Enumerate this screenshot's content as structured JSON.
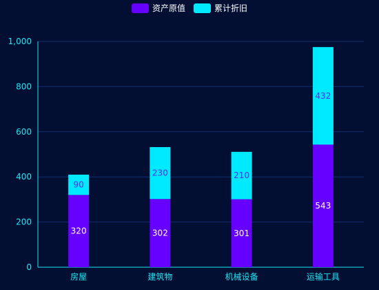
{
  "chart_data": {
    "type": "bar",
    "stacked": true,
    "categories": [
      "房屋",
      "建筑物",
      "机械设备",
      "运输工具"
    ],
    "series": [
      {
        "name": "资产原值",
        "values": [
          320,
          302,
          301,
          543
        ],
        "color": "#6600ff",
        "label_color": "#ffffff"
      },
      {
        "name": "累计折旧",
        "values": [
          90,
          230,
          210,
          432
        ],
        "color": "#00eaff",
        "label_color": "#5a2df0"
      }
    ],
    "ylim": [
      0,
      1000
    ],
    "yticks": [
      "0",
      "200",
      "400",
      "600",
      "800",
      "1,000"
    ],
    "grid": true,
    "legend_position": "top-center",
    "axis_color": "#1ee9f5",
    "grid_color": "#0e2f6e"
  }
}
